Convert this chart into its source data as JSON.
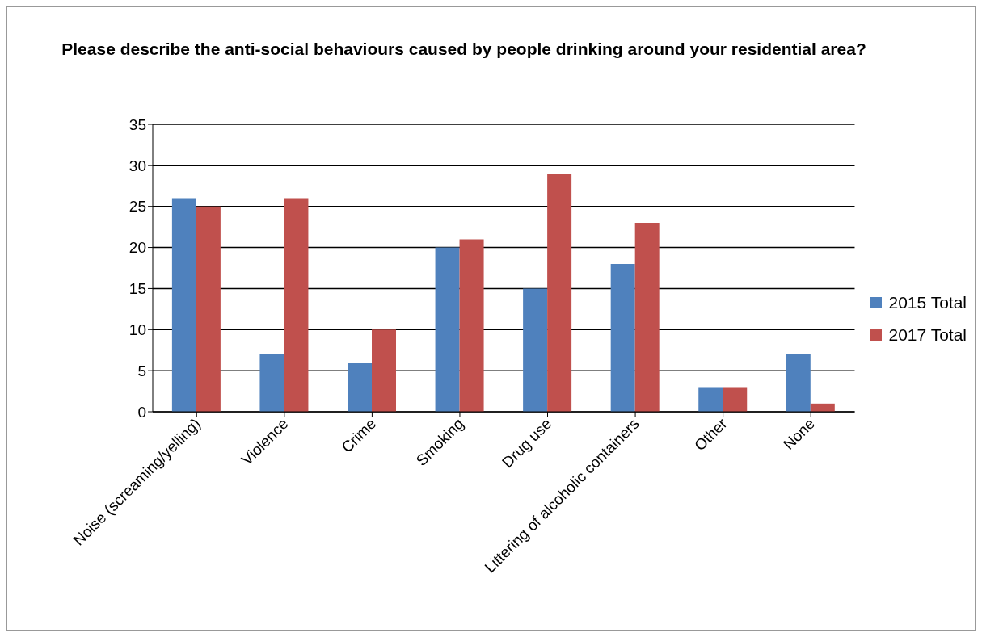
{
  "chart_data": {
    "type": "bar",
    "title": "Please describe the anti-social behaviours caused by people drinking around your residential area?",
    "categories": [
      "Noise (screaming/yelling)",
      "Violence",
      "Crime",
      "Smoking",
      "Drug use",
      "Littering of alcoholic containers",
      "Other",
      "None"
    ],
    "series": [
      {
        "name": "2015 Total",
        "color": "#4f81bd",
        "values": [
          26,
          7,
          6,
          20,
          15,
          18,
          3,
          7
        ]
      },
      {
        "name": "2017 Total",
        "color": "#c0504d",
        "values": [
          25,
          26,
          10,
          21,
          29,
          23,
          3,
          1
        ]
      }
    ],
    "ylim": [
      0,
      35
    ],
    "yticks": [
      0,
      5,
      10,
      15,
      20,
      25,
      30,
      35
    ],
    "grid": "y",
    "legend": "right"
  }
}
